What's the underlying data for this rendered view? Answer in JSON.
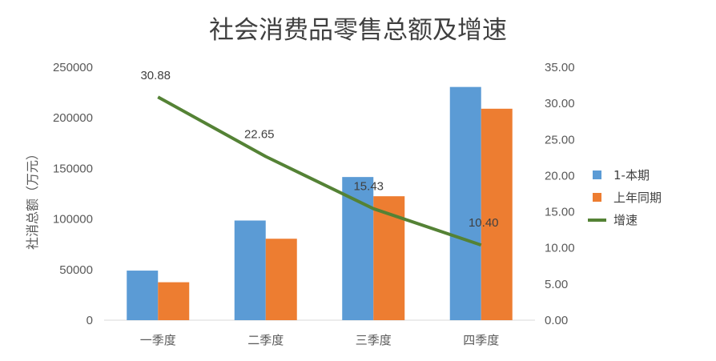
{
  "chart_data": {
    "type": "bar",
    "title": "社会消费品零售总额及增速",
    "ylabel": "社消总额（万元）",
    "categories": [
      "一季度",
      "二季度",
      "三季度",
      "四季度"
    ],
    "ylim": [
      0,
      250000
    ],
    "yticks": [
      "0",
      "50000",
      "100000",
      "150000",
      "200000",
      "250000"
    ],
    "y2lim": [
      0,
      35
    ],
    "y2ticks": [
      "0.00",
      "5.00",
      "10.00",
      "15.00",
      "20.00",
      "25.00",
      "30.00",
      "35.00"
    ],
    "series": [
      {
        "name": "1-本期",
        "type": "bar",
        "axis": "left",
        "color": "#5B9BD5",
        "values": [
          49000,
          98500,
          141500,
          230500
        ]
      },
      {
        "name": "上年同期",
        "type": "bar",
        "axis": "left",
        "color": "#ED7D31",
        "values": [
          37500,
          80500,
          122500,
          209000
        ]
      },
      {
        "name": "增速",
        "type": "line",
        "axis": "right",
        "color": "#548235",
        "values": [
          30.88,
          22.65,
          15.43,
          10.4
        ],
        "labels": [
          "30.88",
          "22.65",
          "15.43",
          "10.40"
        ]
      }
    ],
    "legend": "right",
    "grid": false
  }
}
